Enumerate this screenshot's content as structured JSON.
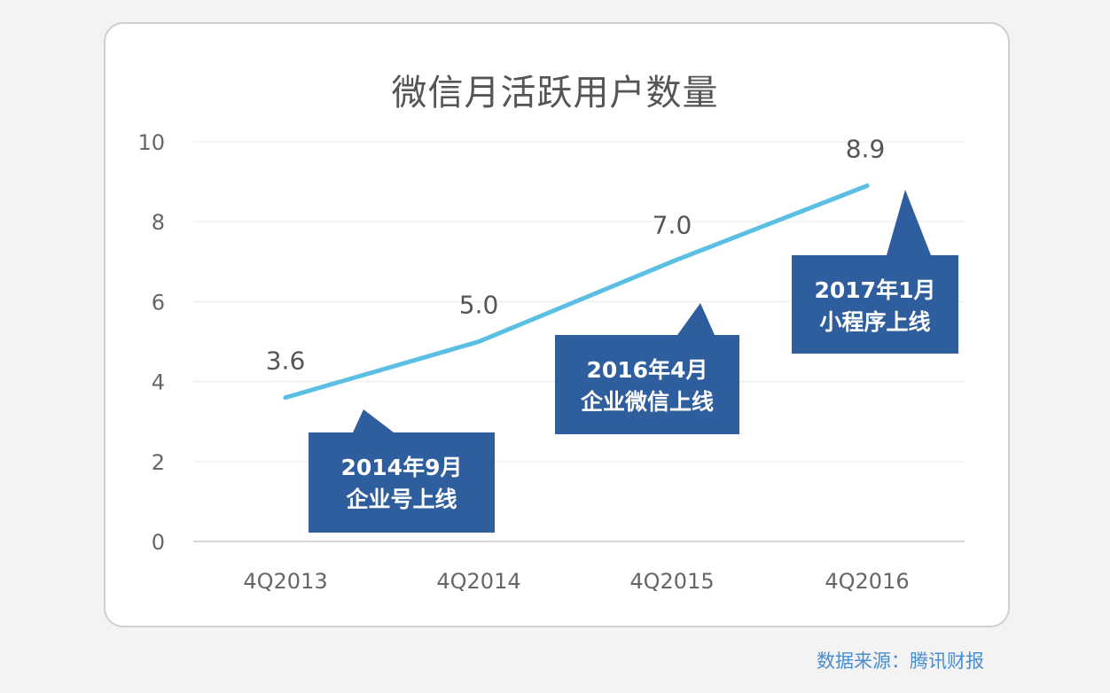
{
  "chart_data": {
    "type": "line",
    "title": "微信月活跃用户数量",
    "categories": [
      "4Q2013",
      "4Q2014",
      "4Q2015",
      "4Q2016"
    ],
    "values": [
      3.6,
      5.0,
      7.0,
      8.9
    ],
    "value_labels": [
      "3.6",
      "5.0",
      "7.0",
      "8.9"
    ],
    "ylim": [
      0,
      10
    ],
    "yticks": [
      "0",
      "2",
      "4",
      "6",
      "8",
      "10"
    ],
    "grid": true,
    "series_color": "#5bbfe3",
    "callout_color": "#2f5e9e",
    "annotations": [
      {
        "line1": "2014年9月",
        "line2": "企业号上线"
      },
      {
        "line1": "2016年4月",
        "line2": "企业微信上线"
      },
      {
        "line1": "2017年1月",
        "line2": "小程序上线"
      }
    ]
  },
  "source": "数据来源：腾讯财报"
}
